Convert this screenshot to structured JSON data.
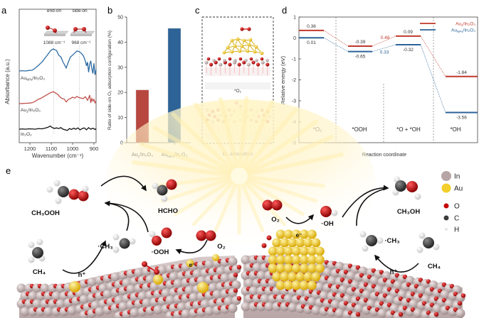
{
  "panels": {
    "a": "a",
    "b": "b",
    "c": "c",
    "d": "d",
    "e": "e"
  },
  "chart_data": [
    {
      "panel": "a",
      "type": "line",
      "title": "",
      "xlabel": "Wavenumber   (cm⁻¹)",
      "ylabel": "Absorbance (a.u.)",
      "xlim": [
        1250,
        890
      ],
      "xticks": [
        1200,
        1100,
        1000,
        900
      ],
      "reference_lines": [
        1088,
        968
      ],
      "annotations": [
        {
          "label": "end-on",
          "wavenumber": "1088 cm⁻¹"
        },
        {
          "label": "side-on",
          "wavenumber": "968 cm⁻¹"
        }
      ],
      "series": [
        {
          "name": "AuNPs/In2O3",
          "label_main": "Au",
          "label_sub": "NPs",
          "label_rest": "/In₂O₃",
          "color": "#2e6ca4",
          "offset": 2,
          "x": [
            1250,
            1235,
            1220,
            1205,
            1190,
            1180,
            1170,
            1160,
            1150,
            1140,
            1130,
            1120,
            1110,
            1100,
            1090,
            1085,
            1075,
            1065,
            1055,
            1045,
            1035,
            1030,
            1020,
            1010,
            1000,
            990,
            980,
            970,
            960,
            950,
            945,
            940,
            935,
            930,
            925,
            920,
            915,
            910,
            905,
            900,
            895,
            890
          ],
          "y": [
            0.0,
            0.01,
            0.0,
            0.02,
            0.03,
            0.08,
            0.15,
            0.22,
            0.3,
            0.38,
            0.5,
            0.6,
            0.72,
            0.82,
            0.86,
            0.84,
            0.8,
            0.62,
            0.55,
            0.35,
            0.2,
            0.12,
            0.35,
            0.55,
            0.62,
            0.7,
            0.78,
            0.76,
            0.7,
            0.6,
            0.5,
            0.38,
            0.2,
            0.35,
            -0.05,
            0.25,
            0.4,
            0.1,
            -0.1,
            0.3,
            -0.15,
            0.05
          ]
        },
        {
          "name": "Au1/In2O3",
          "label_main": "Au",
          "label_sub": "1",
          "label_rest": "/In₂O₃",
          "color": "#c0504d",
          "offset": 1,
          "x": [
            1250,
            1235,
            1220,
            1205,
            1190,
            1180,
            1170,
            1160,
            1150,
            1140,
            1130,
            1120,
            1110,
            1100,
            1090,
            1080,
            1070,
            1060,
            1050,
            1040,
            1030,
            1020,
            1010,
            1000,
            990,
            980,
            970,
            960,
            950,
            940,
            930,
            925,
            920,
            915,
            910,
            905,
            900,
            895,
            890
          ],
          "y": [
            0.0,
            0.01,
            0.02,
            0.03,
            0.05,
            0.1,
            0.18,
            0.26,
            0.3,
            0.38,
            0.45,
            0.52,
            0.6,
            0.66,
            0.7,
            0.62,
            0.55,
            0.4,
            0.3,
            0.28,
            0.1,
            0.25,
            0.3,
            0.38,
            0.32,
            0.42,
            0.36,
            0.32,
            0.3,
            0.4,
            0.2,
            0.32,
            0.5,
            0.05,
            0.3,
            0.15,
            0.25,
            0.05,
            0.15
          ]
        },
        {
          "name": "In2O3",
          "label_main": "In",
          "label_sub": "",
          "label_rest": "₂O₃",
          "color": "#111111",
          "offset": 0,
          "x": [
            1250,
            1235,
            1220,
            1205,
            1190,
            1175,
            1160,
            1145,
            1130,
            1115,
            1105,
            1100,
            1095,
            1085,
            1075,
            1065,
            1055,
            1045,
            1035,
            1025,
            1015,
            1005,
            995,
            985,
            975,
            965,
            955,
            945,
            935,
            925,
            915,
            905,
            895,
            890
          ],
          "y": [
            0.0,
            0.02,
            0.0,
            0.03,
            0.02,
            0.0,
            0.05,
            0.03,
            0.08,
            0.15,
            0.25,
            0.18,
            0.12,
            0.06,
            0.1,
            0.05,
            0.12,
            0.0,
            -0.05,
            -0.1,
            0.05,
            -0.02,
            0.08,
            0.0,
            0.1,
            -0.05,
            0.05,
            0.1,
            -0.05,
            0.12,
            0.0,
            0.08,
            -0.02,
            0.05
          ]
        }
      ]
    },
    {
      "panel": "b",
      "type": "bar",
      "title": "",
      "xlabel": "",
      "ylabel": "Ratio of side-on O₂ adsorption configuration (%)",
      "ylim": [
        0,
        50
      ],
      "yticks": [
        0,
        10,
        20,
        30,
        40,
        50
      ],
      "categories": [
        {
          "main": "Au",
          "sub": "1",
          "rest": "/In₂O₃"
        },
        {
          "main": "Au",
          "sub": "NPs",
          "rest": "/In₂O₃"
        }
      ],
      "values": [
        21,
        45.5
      ],
      "colors": [
        "#b8473f",
        "#2e6398"
      ]
    },
    {
      "panel": "d",
      "type": "line",
      "title": "",
      "xlabel": "Reaction coordinate",
      "ylabel": "Relative energy (eV)",
      "ylim": [
        -5,
        1
      ],
      "yticks": [
        1,
        0,
        -1,
        -2,
        -3,
        -4,
        -5
      ],
      "stages": [
        "*O₂",
        "*OOH",
        "*O + *OH",
        "*OH"
      ],
      "legend": "top-right",
      "series": [
        {
          "name": "Au1/In2O3",
          "label_main": "Au",
          "label_sub": "1",
          "label_rest": "/In₂O₃",
          "color": "#c0392b",
          "values": [
            0.36,
            -0.39,
            0.09,
            -1.84
          ],
          "labels": [
            "0.36",
            "-0.39",
            "0.09",
            "-1.84"
          ],
          "barrier_label": "0.48"
        },
        {
          "name": "AuNPs/In2O3",
          "label_main": "Au",
          "label_sub": "NPs",
          "label_rest": "/In₂O₃",
          "color": "#2b6399",
          "values": [
            0.01,
            -0.65,
            -0.32,
            -3.56
          ],
          "labels": [
            "0.01",
            "-0.65",
            "-0.32",
            "-3.56"
          ],
          "barrier_label": "0.33"
        }
      ]
    }
  ],
  "panel_c": {
    "structure_label": "*O₂",
    "caption": "O₂ adsorption"
  },
  "panel_e": {
    "species": {
      "ch3ooh": "CH₃OOH",
      "hcho": "HCHO",
      "ch3_left": "·CH₃",
      "ooh": "·OOH",
      "o2_left": "O₂",
      "ch4_left": "CH₄",
      "hplus_left": "h⁺",
      "e_left": "e⁻",
      "o2_right": "O₂",
      "oh": "·OH",
      "e_right": "e⁻",
      "ch3oh": "CH₃OH",
      "ch3_right": "·CH₃",
      "ch4_right": "CH₄",
      "hplus_right": "h⁺"
    },
    "legend": [
      {
        "label": "In",
        "color": "#b7a4a4"
      },
      {
        "label": "Au",
        "color": "#f2cf2a"
      },
      {
        "label": "O",
        "color": "#c40000"
      },
      {
        "label": "C",
        "color": "#3a3a3a"
      },
      {
        "label": "H",
        "color": "#e6e6e6"
      }
    ]
  }
}
